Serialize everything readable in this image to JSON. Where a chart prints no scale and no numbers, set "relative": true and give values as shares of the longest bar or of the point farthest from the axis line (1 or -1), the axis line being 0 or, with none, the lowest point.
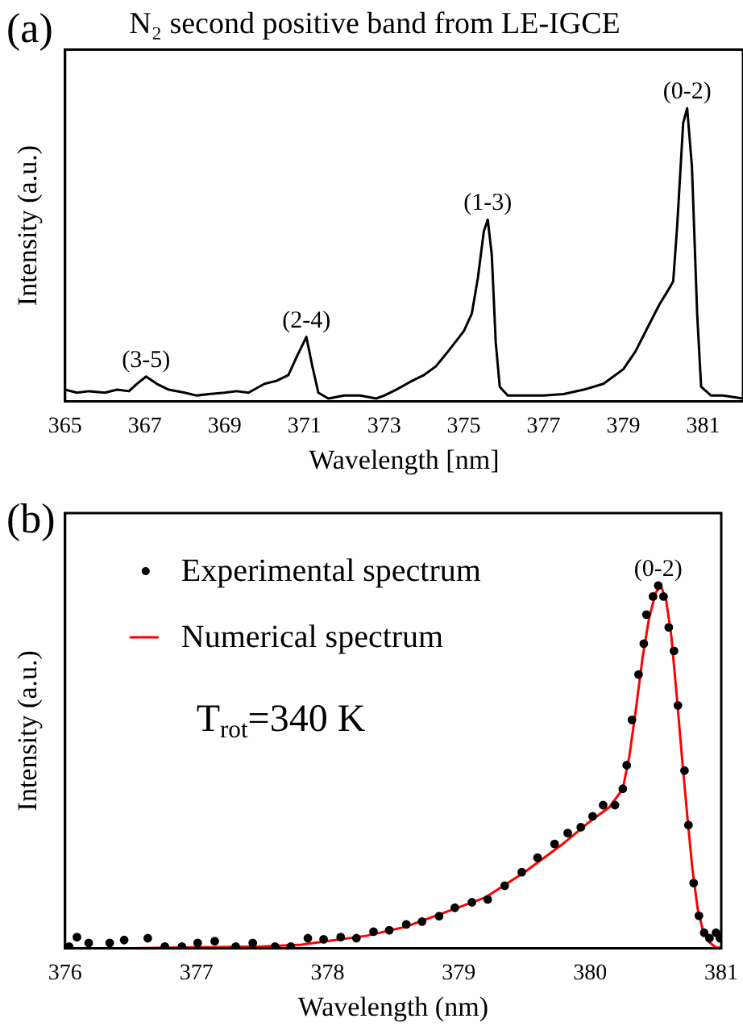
{
  "chart_data": [
    {
      "type": "line",
      "title": "N₂ second positive band from LE-IGCE",
      "xlabel": "Wavelength [nm]",
      "ylabel": "Intensity (a.u.)",
      "relative": true,
      "legend": false,
      "grid": false,
      "xlim": [
        365,
        382
      ],
      "xticks": [
        365,
        367,
        369,
        371,
        373,
        375,
        377,
        379,
        381
      ],
      "annotations": [
        "(a)",
        {
          "text": "(3-5)",
          "x": 367.03,
          "y": 0.085
        },
        {
          "text": "(2-4)",
          "x": 371.05,
          "y": 0.22
        },
        {
          "text": "(1-3)",
          "x": 375.6,
          "y": 0.62
        },
        {
          "text": "(0-2)",
          "x": 380.6,
          "y": 1.0
        }
      ],
      "series": [
        {
          "color": "#000000",
          "x": [
            365.0,
            365.3,
            365.6,
            366.0,
            366.3,
            366.6,
            366.8,
            367.03,
            367.3,
            367.6,
            368.0,
            368.3,
            368.6,
            369.0,
            369.3,
            369.6,
            370.0,
            370.3,
            370.6,
            370.8,
            371.05,
            371.2,
            371.35,
            371.6,
            372.0,
            372.4,
            372.8,
            373.0,
            373.3,
            373.7,
            374.0,
            374.3,
            374.6,
            375.0,
            375.2,
            375.35,
            375.5,
            375.6,
            375.7,
            375.8,
            375.9,
            376.1,
            376.5,
            377.0,
            377.5,
            378.0,
            378.5,
            379.0,
            379.3,
            379.6,
            379.9,
            380.17,
            380.25,
            380.35,
            380.5,
            380.6,
            380.72,
            380.85,
            380.95,
            381.2,
            381.5,
            382.0
          ],
          "values": [
            0.04,
            0.03,
            0.035,
            0.03,
            0.04,
            0.035,
            0.06,
            0.085,
            0.06,
            0.04,
            0.03,
            0.02,
            0.025,
            0.03,
            0.035,
            0.03,
            0.06,
            0.07,
            0.09,
            0.15,
            0.22,
            0.12,
            0.03,
            0.01,
            0.02,
            0.02,
            0.01,
            0.02,
            0.04,
            0.07,
            0.09,
            0.12,
            0.17,
            0.24,
            0.3,
            0.42,
            0.58,
            0.62,
            0.5,
            0.2,
            0.05,
            0.02,
            0.02,
            0.02,
            0.025,
            0.04,
            0.06,
            0.11,
            0.17,
            0.25,
            0.33,
            0.39,
            0.41,
            0.6,
            0.95,
            1.0,
            0.8,
            0.3,
            0.05,
            0.02,
            0.02,
            0.01
          ]
        }
      ]
    },
    {
      "type": "line",
      "xlabel": "Wavelength (nm)",
      "ylabel": "Intensity (a.u.)",
      "relative": true,
      "legend": "top left",
      "grid": false,
      "xlim": [
        376,
        381
      ],
      "xticks": [
        376,
        377,
        378,
        379,
        380,
        381
      ],
      "annotations": [
        "(b)",
        "T$_{rot}$=340 K",
        {
          "text": "(0-2)",
          "x": 380.52,
          "y": 1.0
        }
      ],
      "series": [
        {
          "name": "Experimental spectrum",
          "type": "scatter",
          "marker": "circle",
          "color": "#000000",
          "x": [
            376.03,
            376.09,
            376.18,
            376.34,
            376.45,
            376.63,
            376.76,
            376.89,
            377.01,
            377.14,
            377.3,
            377.43,
            377.6,
            377.72,
            377.85,
            377.97,
            378.1,
            378.22,
            378.35,
            378.47,
            378.6,
            378.72,
            378.85,
            378.97,
            379.1,
            379.22,
            379.35,
            379.48,
            379.6,
            379.73,
            379.83,
            379.93,
            380.02,
            380.1,
            380.19,
            380.25,
            380.28,
            380.32,
            380.37,
            380.41,
            380.43,
            380.48,
            380.52,
            380.56,
            380.6,
            380.64,
            380.67,
            380.72,
            380.75,
            380.79,
            380.83,
            380.87,
            380.91,
            380.96,
            380.99
          ],
          "values": [
            0.005,
            0.031,
            0.015,
            0.015,
            0.023,
            0.028,
            0.005,
            0.005,
            0.015,
            0.02,
            0.005,
            0.015,
            0.005,
            0.005,
            0.028,
            0.025,
            0.031,
            0.028,
            0.046,
            0.05,
            0.066,
            0.074,
            0.089,
            0.112,
            0.127,
            0.135,
            0.173,
            0.21,
            0.25,
            0.288,
            0.318,
            0.334,
            0.364,
            0.395,
            0.395,
            0.44,
            0.505,
            0.63,
            0.755,
            0.84,
            0.92,
            0.97,
            1.0,
            0.97,
            0.885,
            0.82,
            0.67,
            0.49,
            0.34,
            0.18,
            0.09,
            0.043,
            0.028,
            0.043,
            0.028
          ]
        },
        {
          "name": "Numerical spectrum",
          "type": "line",
          "color": "#ff0000",
          "x": [
            376.0,
            376.5,
            377.0,
            377.5,
            377.8,
            378.0,
            378.3,
            378.6,
            378.9,
            379.2,
            379.5,
            379.8,
            380.0,
            380.15,
            380.25,
            380.3,
            380.35,
            380.4,
            380.45,
            380.5,
            380.54,
            380.58,
            380.62,
            380.66,
            380.7,
            380.74,
            380.78,
            380.82,
            380.86,
            380.9,
            380.95,
            381.0
          ],
          "values": [
            0.0,
            0.0,
            0.003,
            0.005,
            0.01,
            0.02,
            0.035,
            0.06,
            0.1,
            0.14,
            0.21,
            0.29,
            0.35,
            0.39,
            0.44,
            0.53,
            0.66,
            0.8,
            0.91,
            0.98,
            1.0,
            0.96,
            0.86,
            0.7,
            0.53,
            0.37,
            0.22,
            0.11,
            0.05,
            0.02,
            0.005,
            0.0
          ]
        }
      ]
    }
  ]
}
